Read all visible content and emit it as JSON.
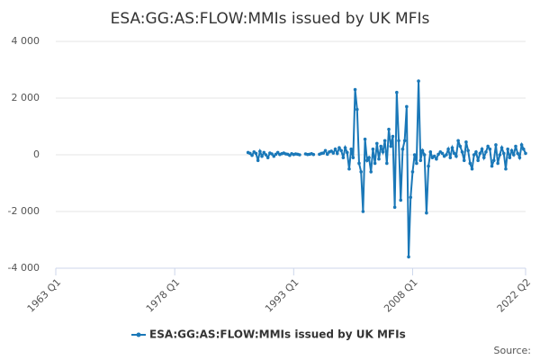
{
  "chart_data": {
    "type": "line",
    "title": "ESA:GG:AS:FLOW:MMIs issued by UK MFIs",
    "source": "Source:",
    "x": [
      "1987 Q2",
      "1987 Q3",
      "1987 Q4",
      "1988 Q1",
      "1988 Q2",
      "1988 Q3",
      "1988 Q4",
      "1989 Q1",
      "1989 Q2",
      "1989 Q3",
      "1989 Q4",
      "1990 Q1",
      "1990 Q2",
      "1990 Q3",
      "1990 Q4",
      "1991 Q1",
      "1991 Q2",
      "1991 Q3",
      "1991 Q4",
      "1992 Q1",
      "1992 Q2",
      "1992 Q3",
      "1992 Q4",
      "1993 Q1",
      "1993 Q2",
      "1993 Q3",
      "1993 Q4",
      "1994 Q1",
      "1994 Q2",
      "1994 Q3",
      "1994 Q4",
      "1995 Q1",
      "1995 Q2",
      "1995 Q3",
      "1995 Q4",
      "1996 Q1",
      "1996 Q2",
      "1996 Q3",
      "1996 Q4",
      "1997 Q1",
      "1997 Q2",
      "1997 Q3",
      "1997 Q4",
      "1998 Q1",
      "1998 Q2",
      "1998 Q3",
      "1998 Q4",
      "1999 Q1",
      "1999 Q2",
      "1999 Q3",
      "1999 Q4",
      "2000 Q1",
      "2000 Q2",
      "2000 Q3",
      "2000 Q4",
      "2001 Q1",
      "2001 Q2",
      "2001 Q3",
      "2001 Q4",
      "2002 Q1",
      "2002 Q2",
      "2002 Q3",
      "2002 Q4",
      "2003 Q1",
      "2003 Q2",
      "2003 Q3",
      "2003 Q4",
      "2004 Q1",
      "2004 Q2",
      "2004 Q3",
      "2004 Q4",
      "2005 Q1",
      "2005 Q2",
      "2005 Q3",
      "2005 Q4",
      "2006 Q1",
      "2006 Q2",
      "2006 Q3",
      "2006 Q4",
      "2007 Q1",
      "2007 Q2",
      "2007 Q3",
      "2007 Q4",
      "2008 Q1",
      "2008 Q2",
      "2008 Q3",
      "2008 Q4",
      "2009 Q1",
      "2009 Q2",
      "2009 Q3",
      "2009 Q4",
      "2010 Q1",
      "2010 Q2",
      "2010 Q3",
      "2010 Q4",
      "2011 Q1",
      "2011 Q2",
      "2011 Q3",
      "2011 Q4",
      "2012 Q1",
      "2012 Q2",
      "2012 Q3",
      "2012 Q4",
      "2013 Q1",
      "2013 Q2",
      "2013 Q3",
      "2013 Q4",
      "2014 Q1",
      "2014 Q2",
      "2014 Q3",
      "2014 Q4",
      "2015 Q1",
      "2015 Q2",
      "2015 Q3",
      "2015 Q4",
      "2016 Q1",
      "2016 Q2",
      "2016 Q3",
      "2016 Q4",
      "2017 Q1",
      "2017 Q2",
      "2017 Q3",
      "2017 Q4",
      "2018 Q1",
      "2018 Q2",
      "2018 Q3",
      "2018 Q4",
      "2019 Q1",
      "2019 Q2",
      "2019 Q3",
      "2019 Q4",
      "2020 Q1",
      "2020 Q2",
      "2020 Q3",
      "2020 Q4",
      "2021 Q1",
      "2021 Q2",
      "2021 Q3",
      "2021 Q4",
      "2022 Q1",
      "2022 Q2"
    ],
    "series": [
      {
        "name": "ESA:GG:AS:FLOW:MMIs issued by UK MFIs",
        "color": "#1a78b8",
        "values": [
          80,
          50,
          -20,
          100,
          50,
          -200,
          120,
          -50,
          80,
          0,
          -100,
          60,
          30,
          -50,
          20,
          80,
          10,
          40,
          60,
          30,
          20,
          -20,
          40,
          10,
          30,
          20,
          0,
          null,
          null,
          30,
          10,
          20,
          40,
          10,
          null,
          null,
          20,
          50,
          60,
          150,
          20,
          100,
          130,
          60,
          200,
          50,
          250,
          150,
          -100,
          250,
          80,
          -500,
          200,
          -100,
          2300,
          1600,
          -300,
          -600,
          -2000,
          550,
          -200,
          -100,
          -600,
          200,
          -300,
          400,
          -150,
          300,
          100,
          500,
          -300,
          900,
          300,
          650,
          -1850,
          2200,
          500,
          -1600,
          200,
          500,
          1700,
          -3600,
          -1500,
          -600,
          0,
          -300,
          2600,
          -200,
          150,
          0,
          -2050,
          -400,
          100,
          -100,
          -50,
          -150,
          20,
          100,
          50,
          -50,
          0,
          200,
          -100,
          250,
          50,
          -50,
          500,
          300,
          100,
          -200,
          450,
          150,
          -300,
          -500,
          0,
          100,
          -200,
          50,
          200,
          -100,
          100,
          300,
          200,
          -400,
          -200,
          350,
          -300,
          0,
          250,
          50,
          -500,
          200,
          -100,
          150,
          0,
          300,
          50,
          -100,
          350,
          200,
          50
        ]
      }
    ],
    "xlim": [
      "1963 Q1",
      "2022 Q2"
    ],
    "xticks": [
      "1963 Q1",
      "1978 Q1",
      "1993 Q1",
      "2008 Q1",
      "2022 Q2"
    ],
    "ylim": [
      -4000,
      4000
    ],
    "yticks": [
      {
        "value": -4000,
        "label": "-4 000"
      },
      {
        "value": -2000,
        "label": "-2 000"
      },
      0,
      {
        "value": 2000,
        "label": "2 000"
      },
      {
        "value": 4000,
        "label": "4 000"
      }
    ],
    "grid": true
  }
}
